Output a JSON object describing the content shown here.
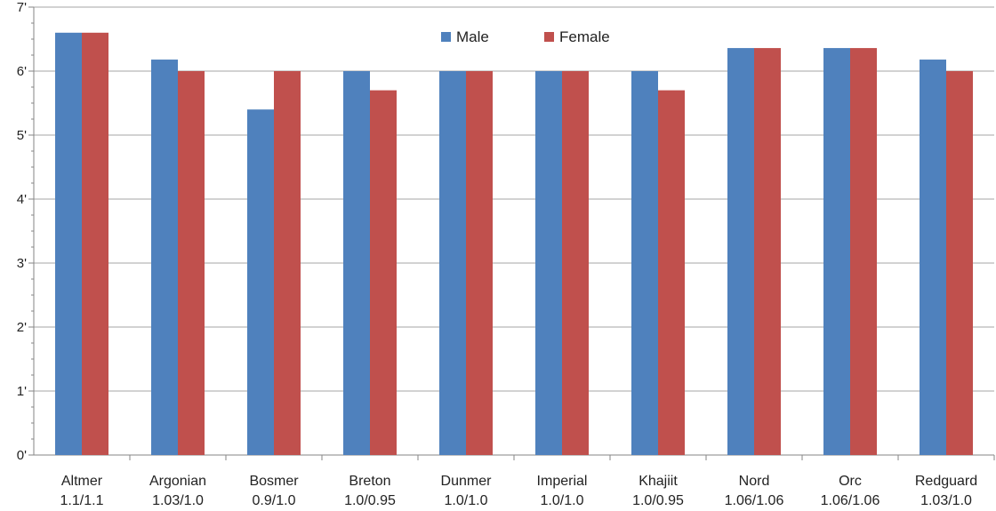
{
  "chart_data": {
    "type": "bar",
    "title": "",
    "xlabel": "",
    "ylabel": "",
    "ylim": [
      0,
      7
    ],
    "y_ticks": [
      "0'",
      "1'",
      "2'",
      "3'",
      "4'",
      "5'",
      "6'",
      "7'"
    ],
    "grid": "horizontal",
    "legend_position": "top-center",
    "categories": [
      {
        "name": "Altmer",
        "scale": "1.1/1.1"
      },
      {
        "name": "Argonian",
        "scale": "1.03/1.0"
      },
      {
        "name": "Bosmer",
        "scale": "0.9/1.0"
      },
      {
        "name": "Breton",
        "scale": "1.0/0.95"
      },
      {
        "name": "Dunmer",
        "scale": "1.0/1.0"
      },
      {
        "name": "Imperial",
        "scale": "1.0/1.0"
      },
      {
        "name": "Khajiit",
        "scale": "1.0/0.95"
      },
      {
        "name": "Nord",
        "scale": "1.06/1.06"
      },
      {
        "name": "Orc",
        "scale": "1.06/1.06"
      },
      {
        "name": "Redguard",
        "scale": "1.03/1.0"
      }
    ],
    "series": [
      {
        "name": "Male",
        "color": "#4f81bd",
        "values": [
          6.6,
          6.18,
          5.4,
          6.0,
          6.0,
          6.0,
          6.0,
          6.36,
          6.36,
          6.18
        ]
      },
      {
        "name": "Female",
        "color": "#c0504d",
        "values": [
          6.6,
          6.0,
          6.0,
          5.7,
          6.0,
          6.0,
          5.7,
          6.36,
          6.36,
          6.0
        ]
      }
    ]
  }
}
